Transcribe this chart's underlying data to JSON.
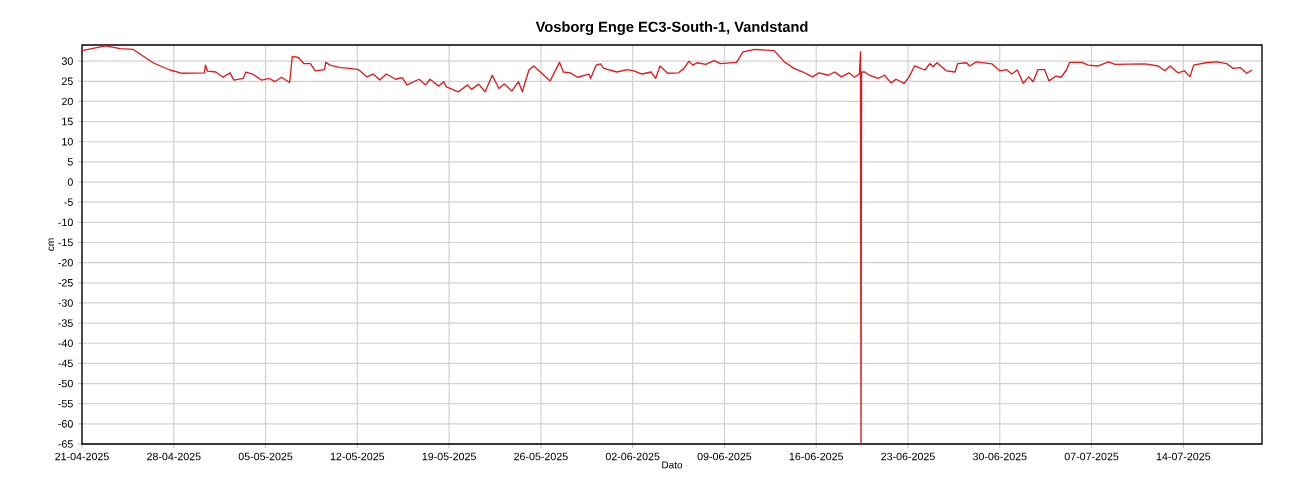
{
  "chart_data": {
    "type": "line",
    "title": "Vosborg Enge EC3-South-1, Vandstand",
    "xlabel": "Dato",
    "ylabel": "cm",
    "xlim": [
      "2025-04-21",
      "2025-07-20"
    ],
    "ylim": [
      -65,
      34
    ],
    "xticks": [
      {
        "value": "2025-04-21",
        "label": "21-04-2025"
      },
      {
        "value": "2025-04-28",
        "label": "28-04-2025"
      },
      {
        "value": "2025-05-05",
        "label": "05-05-2025"
      },
      {
        "value": "2025-05-12",
        "label": "12-05-2025"
      },
      {
        "value": "2025-05-19",
        "label": "19-05-2025"
      },
      {
        "value": "2025-05-26",
        "label": "26-05-2025"
      },
      {
        "value": "2025-06-02",
        "label": "02-06-2025"
      },
      {
        "value": "2025-06-09",
        "label": "09-06-2025"
      },
      {
        "value": "2025-06-16",
        "label": "16-06-2025"
      },
      {
        "value": "2025-06-23",
        "label": "23-06-2025"
      },
      {
        "value": "2025-06-30",
        "label": "30-06-2025"
      },
      {
        "value": "2025-07-07",
        "label": "07-07-2025"
      },
      {
        "value": "2025-07-14",
        "label": "14-07-2025"
      }
    ],
    "yticks": [
      30,
      25,
      20,
      15,
      10,
      5,
      0,
      -5,
      -10,
      -15,
      -20,
      -25,
      -30,
      -35,
      -40,
      -45,
      -50,
      -55,
      -60,
      -65
    ],
    "grid": true,
    "marker": "none",
    "line_style": "solid",
    "series": [
      {
        "color": "#e31a1c",
        "x": [
          "2025-04-21T00:00",
          "2025-04-22T19:00",
          "2025-04-23T22:00",
          "2025-04-24T22:00",
          "2025-04-26T10:00",
          "2025-04-27T17:00",
          "2025-04-28T14:00",
          "2025-04-30T08:00",
          "2025-04-30T10:00",
          "2025-04-30T14:00",
          "2025-05-01T05:00",
          "2025-05-01T18:00",
          "2025-05-02T07:00",
          "2025-05-02T14:00",
          "2025-05-03T07:00",
          "2025-05-03T12:00",
          "2025-05-04T00:00",
          "2025-05-04T17:00",
          "2025-05-05T07:00",
          "2025-05-05T17:00",
          "2025-05-06T05:00",
          "2025-05-06T20:00",
          "2025-05-07T01:00",
          "2025-05-07T12:00",
          "2025-05-07T22:00",
          "2025-05-08T10:00",
          "2025-05-08T19:00",
          "2025-05-09T12:00",
          "2025-05-09T14:00",
          "2025-05-09T22:00",
          "2025-05-10T17:00",
          "2025-05-11T10:00",
          "2025-05-12T02:00",
          "2025-05-12T17:00",
          "2025-05-13T05:00",
          "2025-05-13T17:00",
          "2025-05-14T05:00",
          "2025-05-14T22:00",
          "2025-05-15T10:00",
          "2025-05-15T19:00",
          "2025-05-16T17:00",
          "2025-05-17T05:00",
          "2025-05-17T13:00",
          "2025-05-18T05:00",
          "2025-05-18T14:00",
          "2025-05-18T19:00",
          "2025-05-19T17:00",
          "2025-05-20T10:00",
          "2025-05-20T17:00",
          "2025-05-21T06:00",
          "2025-05-21T18:00",
          "2025-05-22T07:00",
          "2025-05-22T19:00",
          "2025-05-23T05:00",
          "2025-05-23T19:00",
          "2025-05-24T07:00",
          "2025-05-24T14:00",
          "2025-05-25T02:00",
          "2025-05-25T11:00",
          "2025-05-25T23:00",
          "2025-05-26T17:00",
          "2025-05-27T10:00",
          "2025-05-27T17:00",
          "2025-05-28T06:00",
          "2025-05-28T19:00",
          "2025-05-29T16:00",
          "2025-05-29T19:00",
          "2025-05-30T05:00",
          "2025-05-30T13:00",
          "2025-05-30T19:00",
          "2025-05-31T19:00",
          "2025-06-01T14:00",
          "2025-06-02T02:00",
          "2025-06-02T17:00",
          "2025-06-03T10:00",
          "2025-06-03T18:00",
          "2025-06-04T02:00",
          "2025-06-04T16:00",
          "2025-06-05T12:00",
          "2025-06-05T22:00",
          "2025-06-06T07:00",
          "2025-06-06T14:00",
          "2025-06-06T22:00",
          "2025-06-07T14:00",
          "2025-06-08T05:00",
          "2025-06-08T17:00",
          "2025-06-09T22:00",
          "2025-06-10T10:00",
          "2025-06-11T07:00",
          "2025-06-12T19:00",
          "2025-06-13T14:00",
          "2025-06-14T07:00",
          "2025-06-15T00:00",
          "2025-06-15T17:00",
          "2025-06-16T05:00",
          "2025-06-16T22:00",
          "2025-06-17T10:00",
          "2025-06-17T22:00",
          "2025-06-18T12:00",
          "2025-06-18T22:00",
          "2025-06-19T07:00",
          "2025-06-19T09:00",
          "2025-06-19T10:00",
          "2025-06-19T11:00",
          "2025-06-19T17:00",
          "2025-06-20T01:00",
          "2025-06-20T17:00",
          "2025-06-21T05:00",
          "2025-06-21T17:00",
          "2025-06-22T02:00",
          "2025-06-22T17:00",
          "2025-06-23T02:00",
          "2025-06-23T12:00",
          "2025-06-24T07:00",
          "2025-06-24T16:00",
          "2025-06-24T22:00",
          "2025-06-25T05:00",
          "2025-06-25T22:00",
          "2025-06-26T14:00",
          "2025-06-26T19:00",
          "2025-06-27T11:00",
          "2025-06-27T17:00",
          "2025-06-28T05:00",
          "2025-06-29T10:00",
          "2025-06-30T00:00",
          "2025-06-30T12:00",
          "2025-06-30T22:00",
          "2025-07-01T08:00",
          "2025-07-01T19:00",
          "2025-07-02T05:00",
          "2025-07-02T13:00",
          "2025-07-02T22:00",
          "2025-07-03T10:00",
          "2025-07-03T18:00",
          "2025-07-04T07:00",
          "2025-07-04T16:00",
          "2025-07-05T02:00",
          "2025-07-05T08:00",
          "2025-07-06T06:00",
          "2025-07-06T18:00",
          "2025-07-07T12:00",
          "2025-07-08T07:00",
          "2025-07-08T19:00",
          "2025-07-11T02:00",
          "2025-07-12T02:00",
          "2025-07-12T14:00",
          "2025-07-13T00:00",
          "2025-07-13T14:00",
          "2025-07-14T02:00",
          "2025-07-14T12:00",
          "2025-07-14T19:00",
          "2025-07-15T17:00",
          "2025-07-16T14:00",
          "2025-07-17T07:00",
          "2025-07-17T19:00",
          "2025-07-18T08:00",
          "2025-07-18T20:00",
          "2025-07-19T06:00"
        ],
        "values": [
          32.6,
          33.8,
          33.1,
          32.9,
          29.6,
          27.8,
          27.0,
          27.1,
          29.0,
          27.5,
          27.3,
          26.0,
          27.1,
          25.3,
          25.7,
          27.3,
          26.8,
          25.3,
          25.7,
          24.9,
          26.0,
          24.7,
          31.2,
          30.9,
          29.4,
          29.4,
          27.6,
          27.9,
          29.7,
          29.0,
          28.4,
          28.2,
          27.9,
          26.1,
          26.8,
          25.3,
          26.8,
          25.5,
          25.9,
          24.1,
          25.5,
          24.1,
          25.5,
          23.8,
          24.9,
          23.6,
          22.4,
          24.1,
          23.0,
          24.3,
          22.4,
          26.5,
          23.2,
          24.3,
          22.6,
          24.9,
          22.4,
          27.8,
          28.8,
          27.3,
          25.1,
          29.7,
          27.3,
          27.1,
          26.0,
          26.8,
          25.7,
          29.0,
          29.3,
          28.2,
          27.3,
          27.9,
          27.6,
          26.8,
          27.3,
          25.7,
          28.8,
          27.0,
          27.1,
          28.2,
          30.0,
          29.0,
          29.6,
          29.2,
          30.1,
          29.4,
          29.7,
          32.3,
          32.9,
          32.6,
          29.8,
          28.2,
          27.3,
          26.1,
          27.1,
          26.5,
          27.3,
          26.1,
          27.1,
          26.0,
          26.8,
          32.3,
          -65,
          27.3,
          27.3,
          26.5,
          25.7,
          26.5,
          24.6,
          25.5,
          24.5,
          26.1,
          28.8,
          27.8,
          29.4,
          28.6,
          29.6,
          27.6,
          27.3,
          29.4,
          29.6,
          28.8,
          29.8,
          29.3,
          27.6,
          27.9,
          26.8,
          27.8,
          24.5,
          26.1,
          24.9,
          27.9,
          27.9,
          25.1,
          26.3,
          26.0,
          27.8,
          29.7,
          29.7,
          29.0,
          28.8,
          29.8,
          29.2,
          29.3,
          28.8,
          27.6,
          28.8,
          27.1,
          27.6,
          26.1,
          29.0,
          29.6,
          29.8,
          29.4,
          28.2,
          28.4,
          27.0,
          27.8
        ]
      }
    ]
  }
}
